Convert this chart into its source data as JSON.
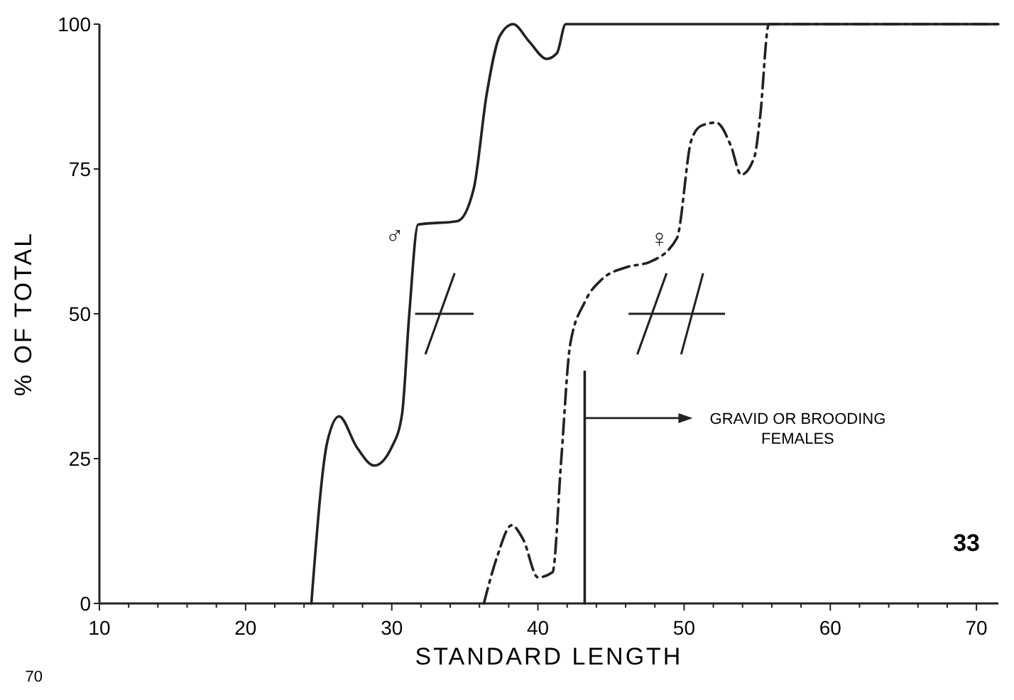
{
  "chart_data": {
    "type": "line",
    "xlabel": "STANDARD LENGTH",
    "ylabel": "% OF TOTAL",
    "xlim": [
      10,
      71.5
    ],
    "ylim": [
      0,
      100
    ],
    "xticks": [
      10,
      {
        "value": 12,
        "label": null
      },
      {
        "value": 14,
        "label": null
      },
      {
        "value": 16,
        "label": null
      },
      {
        "value": 18,
        "label": null
      },
      20,
      {
        "value": 22,
        "label": null
      },
      {
        "value": 24,
        "label": null
      },
      {
        "value": 26,
        "label": null
      },
      {
        "value": 28,
        "label": null
      },
      30,
      {
        "value": 32,
        "label": null
      },
      {
        "value": 34,
        "label": null
      },
      {
        "value": 36,
        "label": null
      },
      {
        "value": 38,
        "label": null
      },
      40,
      {
        "value": 42,
        "label": null
      },
      {
        "value": 44,
        "label": null
      },
      {
        "value": 46,
        "label": null
      },
      {
        "value": 48,
        "label": null
      },
      50,
      {
        "value": 52,
        "label": null
      },
      {
        "value": 54,
        "label": null
      },
      {
        "value": 56,
        "label": null
      },
      {
        "value": 58,
        "label": null
      },
      60,
      {
        "value": 62,
        "label": null
      },
      {
        "value": 64,
        "label": null
      },
      {
        "value": 66,
        "label": null
      },
      {
        "value": 68,
        "label": null
      },
      70
    ],
    "yticks": [
      0,
      25,
      50,
      75,
      100
    ],
    "grid": false,
    "marker": "none",
    "series": [
      {
        "name": "♂",
        "color": "#222222",
        "line_style": "solid",
        "x": [
          24.5,
          25.6,
          26.4,
          27.6,
          28.8,
          30.0,
          30.7,
          31.2,
          31.8,
          34.5,
          35.6,
          36.5,
          37.4,
          38.3,
          39.4,
          40.6,
          41.3,
          41.9,
          71.5
        ],
        "values": [
          0,
          28,
          32.3,
          27,
          23.8,
          27,
          32.6,
          50,
          65.4,
          66,
          71.5,
          88,
          98,
          100,
          97,
          94,
          95,
          100,
          100
        ]
      },
      {
        "name": "♀",
        "color": "#222222",
        "line_style": "dashed",
        "x": [
          36.3,
          37.2,
          38.2,
          39.0,
          40.0,
          41.0,
          41.6,
          42.2,
          43.2,
          44.4,
          46,
          47.7,
          49.5,
          50.5,
          51.2,
          52.2,
          53.2,
          53.9,
          54.8,
          55.2,
          55.8,
          71.5
        ],
        "values": [
          0,
          8,
          13.5,
          11,
          4.5,
          5.4,
          25,
          44.6,
          52,
          56,
          58,
          59,
          63,
          80,
          82.5,
          83,
          79,
          74,
          77,
          84,
          100,
          100
        ]
      },
      {
        "type": "line",
        "color": "#222222",
        "line_style": "solid",
        "x": [
          43.2,
          43.2
        ],
        "values": [
          0,
          40
        ]
      }
    ],
    "annotations": [
      "GRAVID OR BROODING FEMALES",
      "33",
      "70"
    ]
  }
}
